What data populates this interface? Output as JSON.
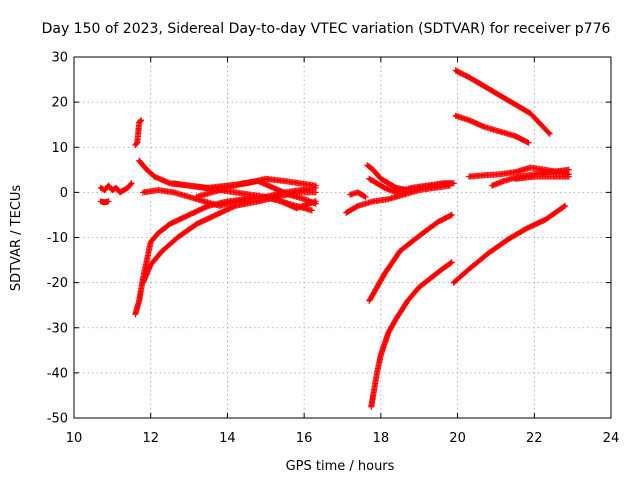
{
  "chart_data": {
    "type": "scatter",
    "title": "Day 150 of 2023, Sidereal Day-to-day VTEC variation (SDTVAR) for receiver p776",
    "xlabel": "GPS time / hours",
    "ylabel": "SDTVAR / TECUs",
    "xlim": [
      10,
      24
    ],
    "ylim": [
      -50,
      30
    ],
    "xticks": [
      10,
      12,
      14,
      16,
      18,
      20,
      22,
      24
    ],
    "yticks": [
      -50,
      -40,
      -30,
      -20,
      -10,
      0,
      10,
      20,
      30
    ],
    "grid": true,
    "marker": "+",
    "color": "#ff0000",
    "tracks": [
      {
        "x": [
          10.7,
          10.8,
          10.9,
          11.0,
          11.1,
          11.2,
          11.4,
          11.5
        ],
        "y": [
          1.0,
          0.5,
          1.5,
          0.5,
          1.0,
          0.0,
          1.0,
          2.0
        ]
      },
      {
        "x": [
          10.7,
          10.8,
          10.9
        ],
        "y": [
          -2.0,
          -2.2,
          -2.0
        ]
      },
      {
        "x": [
          11.6,
          11.65,
          11.7,
          11.75
        ],
        "y": [
          10.5,
          11.0,
          15.5,
          16.0
        ]
      },
      {
        "x": [
          11.6,
          11.7,
          11.8,
          11.9,
          12.0,
          12.2,
          12.5,
          13.0,
          13.5,
          14.0,
          15.0,
          15.5,
          16.3
        ],
        "y": [
          -27.0,
          -24.0,
          -19.0,
          -15.0,
          -11.0,
          -9.0,
          -7.0,
          -5.0,
          -3.0,
          -2.0,
          -1.0,
          0.0,
          1.0
        ]
      },
      {
        "x": [
          11.8,
          12.0,
          12.3,
          12.7,
          13.2,
          13.7,
          14.2,
          14.8,
          15.3,
          15.8,
          16.3
        ],
        "y": [
          -20.0,
          -16.0,
          -13.0,
          -10.0,
          -7.0,
          -5.0,
          -3.0,
          -2.0,
          -1.0,
          0.0,
          0.0
        ]
      },
      {
        "x": [
          11.7,
          11.9,
          12.1,
          12.5,
          13.0,
          13.5,
          14.0,
          14.5,
          15.0,
          15.5,
          16.3
        ],
        "y": [
          7.0,
          5.0,
          3.5,
          2.0,
          1.5,
          1.0,
          1.5,
          2.0,
          3.0,
          2.5,
          1.5
        ]
      },
      {
        "x": [
          11.8,
          12.2,
          12.6,
          13.0,
          13.4,
          13.8,
          14.2,
          14.6,
          15.0,
          15.4,
          15.8,
          16.3
        ],
        "y": [
          0.0,
          0.5,
          0.0,
          -1.0,
          -2.0,
          -3.0,
          -2.0,
          -1.5,
          -1.0,
          -2.0,
          -3.5,
          -2.0
        ]
      },
      {
        "x": [
          12.6,
          13.0,
          13.4,
          13.8,
          14.2,
          14.6,
          15.0,
          15.4,
          15.8,
          16.2
        ],
        "y": [
          2.0,
          1.5,
          1.0,
          0.5,
          0.0,
          -0.5,
          -1.0,
          -2.0,
          -3.0,
          -4.0
        ]
      },
      {
        "x": [
          13.2,
          13.6,
          14.0,
          14.4,
          14.8,
          15.2,
          15.6,
          16.0,
          16.3
        ],
        "y": [
          -1.0,
          0.0,
          1.0,
          2.0,
          2.5,
          1.0,
          -0.5,
          -1.5,
          -2.5
        ]
      },
      {
        "x": [
          17.2,
          17.4,
          17.6
        ],
        "y": [
          -0.5,
          0.0,
          -1.0
        ]
      },
      {
        "x": [
          17.65,
          17.8,
          18.0,
          18.2,
          18.4,
          18.7,
          19.0,
          19.4,
          19.8
        ],
        "y": [
          6.0,
          5.0,
          3.0,
          2.0,
          1.0,
          0.5,
          1.0,
          1.5,
          2.0
        ]
      },
      {
        "x": [
          17.7,
          17.9,
          18.1,
          18.4,
          18.8,
          19.2,
          19.6,
          19.9
        ],
        "y": [
          3.0,
          2.0,
          1.0,
          0.0,
          1.0,
          1.5,
          2.0,
          2.0
        ]
      },
      {
        "x": [
          17.1,
          17.4,
          17.8,
          18.2,
          18.6,
          19.0,
          19.4,
          19.8
        ],
        "y": [
          -4.5,
          -3.0,
          -2.0,
          -1.5,
          -0.5,
          0.5,
          1.0,
          1.5
        ]
      },
      {
        "x": [
          17.7,
          17.9,
          18.1,
          18.3,
          18.5,
          18.8,
          19.1,
          19.5,
          19.85
        ],
        "y": [
          -24.0,
          -21.0,
          -18.0,
          -15.5,
          -13.0,
          -11.0,
          -9.0,
          -6.5,
          -5.0
        ]
      },
      {
        "x": [
          17.75,
          17.8,
          17.9,
          18.0,
          18.2,
          18.4,
          18.7,
          19.0,
          19.3,
          19.6,
          19.85
        ],
        "y": [
          -47.5,
          -45.0,
          -40.0,
          -36.0,
          -31.0,
          -28.0,
          -24.0,
          -21.0,
          -19.0,
          -17.0,
          -15.5
        ]
      },
      {
        "x": [
          19.9,
          20.3,
          20.8,
          21.3,
          21.8,
          22.3,
          22.8
        ],
        "y": [
          -20.0,
          -17.0,
          -13.5,
          -10.5,
          -8.0,
          -6.0,
          -3.0
        ]
      },
      {
        "x": [
          19.95,
          20.3,
          20.7,
          21.1,
          21.5,
          21.9,
          22.4
        ],
        "y": [
          27.0,
          25.5,
          23.5,
          21.5,
          19.5,
          17.5,
          13.0
        ]
      },
      {
        "x": [
          19.95,
          20.3,
          20.7,
          21.1,
          21.5,
          21.85
        ],
        "y": [
          17.0,
          16.0,
          14.5,
          13.5,
          12.5,
          11.0
        ]
      },
      {
        "x": [
          20.3,
          20.7,
          21.1,
          21.5,
          21.9,
          22.3,
          22.9
        ],
        "y": [
          3.5,
          3.8,
          4.0,
          4.5,
          5.5,
          5.0,
          4.0
        ]
      },
      {
        "x": [
          20.9,
          21.2,
          21.6,
          22.0,
          22.4,
          22.9
        ],
        "y": [
          1.5,
          2.5,
          3.5,
          4.0,
          4.5,
          5.0
        ]
      },
      {
        "x": [
          21.5,
          22.0,
          22.5,
          22.9
        ],
        "y": [
          3.0,
          3.5,
          3.5,
          3.5
        ]
      }
    ]
  }
}
